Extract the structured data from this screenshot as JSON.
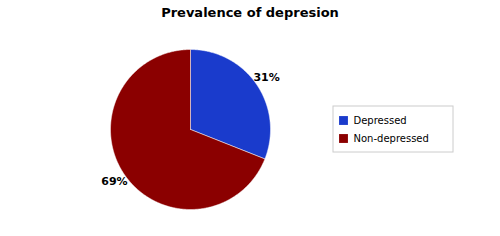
{
  "chart_data": {
    "type": "pie",
    "title": "Prevalence of depresion",
    "categories": [
      "Depressed",
      "Non-depressed"
    ],
    "values": [
      31,
      69
    ],
    "value_labels": [
      "31%",
      "69%"
    ],
    "colors": [
      "#1a3bcc",
      "#8b0000"
    ],
    "data_labels": true,
    "legend": "right"
  }
}
